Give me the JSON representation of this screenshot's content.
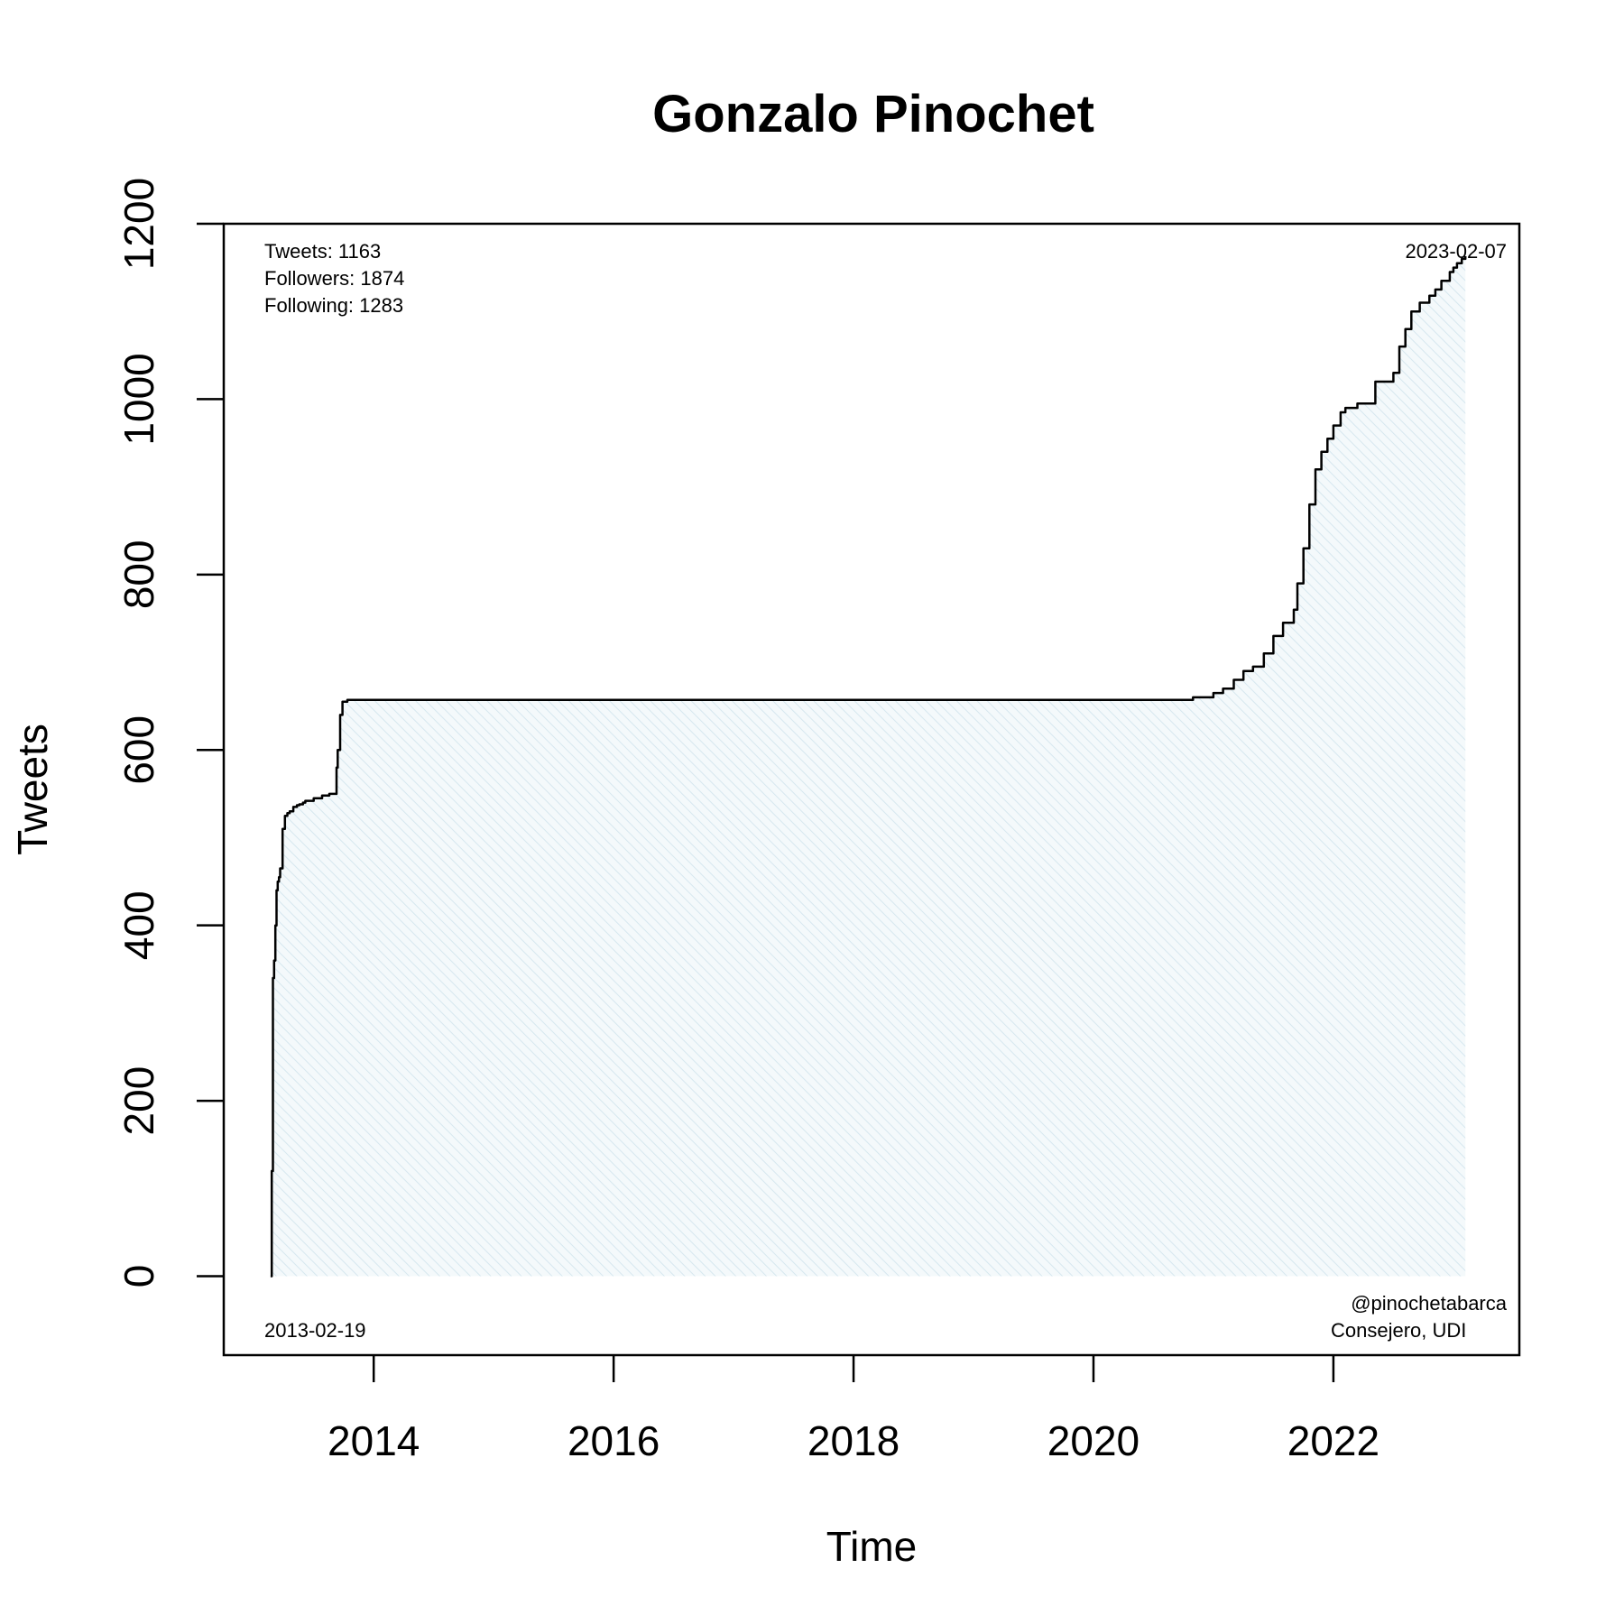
{
  "chart_data": {
    "type": "area",
    "title": "Gonzalo Pinochet",
    "xlabel": "Time",
    "ylabel": "Tweets",
    "xlim": [
      2012.75,
      2023.55
    ],
    "ylim": [
      -90,
      1200
    ],
    "x_ticks": [
      2014,
      2016,
      2018,
      2020,
      2022
    ],
    "x_tick_labels": [
      "2014",
      "2016",
      "2018",
      "2020",
      "2022"
    ],
    "y_ticks": [
      0,
      200,
      400,
      600,
      800,
      1000,
      1200
    ],
    "y_tick_labels": [
      "0",
      "200",
      "400",
      "600",
      "800",
      "1000",
      "1200"
    ],
    "grid": false,
    "fill_color": "#e8f2f7",
    "line_color": "#000000",
    "annotations": {
      "stats": [
        "Tweets: 1163",
        "Followers: 1874",
        "Following: 1283"
      ],
      "start_date": "2013-02-19",
      "end_date": "2023-02-07",
      "account": [
        "@pinochetabarca",
        "Consejero, UDI"
      ]
    },
    "series": [
      {
        "x": [
          2013.14,
          2013.15,
          2013.16,
          2013.17,
          2013.18,
          2013.19,
          2013.2,
          2013.21,
          2013.22,
          2013.24,
          2013.26,
          2013.28,
          2013.3,
          2013.33,
          2013.36,
          2013.38,
          2013.41,
          2013.43,
          2013.5,
          2013.57,
          2013.63,
          2013.69,
          2013.7,
          2013.72,
          2013.74,
          2013.78,
          2013.8,
          2013.83,
          2014.5,
          2016,
          2018,
          2020,
          2020.83,
          2021.0,
          2021.08,
          2021.17,
          2021.25,
          2021.33,
          2021.42,
          2021.5,
          2021.58,
          2021.67,
          2021.7,
          2021.75,
          2021.8,
          2021.85,
          2021.9,
          2021.95,
          2022.0,
          2022.06,
          2022.1,
          2022.2,
          2022.35,
          2022.5,
          2022.55,
          2022.6,
          2022.65,
          2022.72,
          2022.8,
          2022.85,
          2022.9,
          2022.97,
          2023.0,
          2023.03,
          2023.07,
          2023.1
        ],
        "y": [
          0,
          120,
          340,
          360,
          400,
          440,
          450,
          455,
          465,
          510,
          525,
          528,
          530,
          535,
          537,
          538,
          540,
          542,
          545,
          548,
          550,
          580,
          600,
          640,
          655,
          657,
          657,
          657,
          657,
          657,
          657,
          657,
          660,
          665,
          670,
          680,
          690,
          695,
          710,
          730,
          745,
          760,
          790,
          830,
          880,
          920,
          940,
          955,
          970,
          985,
          990,
          995,
          1020,
          1030,
          1060,
          1080,
          1100,
          1110,
          1118,
          1125,
          1135,
          1145,
          1150,
          1155,
          1160,
          1163
        ]
      }
    ]
  }
}
